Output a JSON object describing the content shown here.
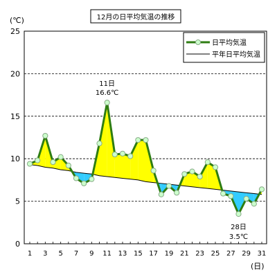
{
  "chart_data": {
    "type": "line",
    "title": "12月の日平均気温の推移",
    "y_unit_label": "(℃)",
    "x_unit_label": "(日)",
    "ylim": [
      0,
      25
    ],
    "yticks": [
      0,
      5,
      10,
      15,
      20,
      25
    ],
    "xlim": [
      1,
      31
    ],
    "xticks": [
      1,
      3,
      5,
      7,
      9,
      11,
      13,
      15,
      17,
      19,
      21,
      23,
      25,
      27,
      29,
      31
    ],
    "grid": "horizontal-dashed",
    "legend_position": "top-right",
    "x": [
      1,
      2,
      3,
      4,
      5,
      6,
      7,
      8,
      9,
      10,
      11,
      12,
      13,
      14,
      15,
      16,
      17,
      18,
      19,
      20,
      21,
      22,
      23,
      24,
      25,
      26,
      27,
      28,
      29,
      30,
      31
    ],
    "series": [
      {
        "name": "日平均気温",
        "color": "#2e7d12",
        "marker": "circle",
        "values": [
          9.4,
          9.8,
          12.7,
          9.6,
          10.2,
          9.2,
          7.7,
          7.1,
          7.6,
          11.8,
          16.6,
          10.5,
          10.6,
          10.3,
          12.2,
          12.2,
          8.6,
          5.8,
          6.8,
          6.0,
          8.2,
          8.5,
          7.9,
          9.6,
          9.0,
          5.9,
          5.6,
          3.5,
          5.3,
          4.7,
          6.4
        ]
      },
      {
        "name": "平年日平均気温",
        "color": "#000000",
        "marker": "none",
        "values": [
          9.3,
          9.2,
          9.0,
          8.9,
          8.7,
          8.6,
          8.4,
          8.3,
          8.2,
          8.0,
          7.9,
          7.8,
          7.7,
          7.6,
          7.5,
          7.3,
          7.2,
          7.1,
          7.0,
          6.9,
          6.8,
          6.7,
          6.6,
          6.5,
          6.4,
          6.3,
          6.2,
          6.1,
          6.0,
          5.9,
          5.8
        ]
      }
    ],
    "fill_above_color": "#ffff00",
    "fill_below_color": "#33ccff",
    "annotations": [
      {
        "day_label": "11日",
        "value_label": "16.6℃",
        "x": 11,
        "y": 16.6
      },
      {
        "day_label": "28日",
        "value_label": "3.5℃",
        "x": 28,
        "y": 3.5
      }
    ]
  }
}
